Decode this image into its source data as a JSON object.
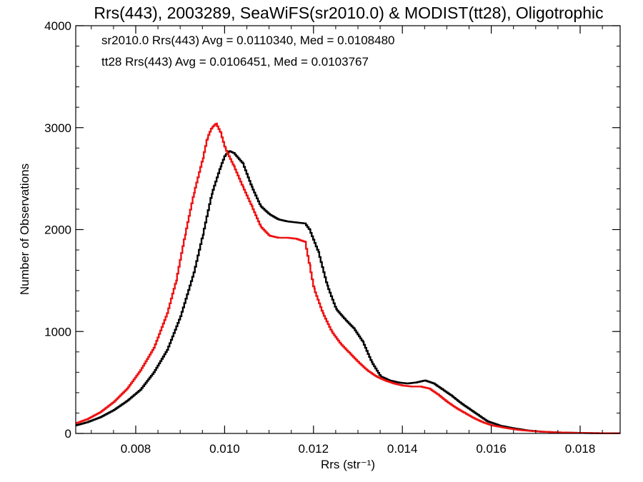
{
  "chart_data": {
    "type": "line",
    "title": "Rrs(443), 2003289, SeaWiFS(sr2010.0) & MODIST(tt28), Oligotrophic",
    "xlabel": "Rrs (str⁻¹)",
    "ylabel": "Number of Observations",
    "xlim": [
      0.00665,
      0.0189
    ],
    "ylim": [
      0,
      4000
    ],
    "x_ticks": [
      0.008,
      0.01,
      0.012,
      0.014,
      0.016,
      0.018
    ],
    "x_tick_labels": [
      "0.008",
      "0.010",
      "0.012",
      "0.014",
      "0.016",
      "0.018"
    ],
    "y_ticks": [
      0,
      1000,
      2000,
      3000,
      4000
    ],
    "y_tick_labels": [
      "0",
      "1000",
      "2000",
      "3000",
      "4000"
    ],
    "grid": false,
    "legend_placement": "top-left",
    "annotations": [
      {
        "text": "sr2010.0 Rrs(443) Avg = 0.0110340, Med = 0.0108480",
        "color": "#000000"
      },
      {
        "text": "tt28 Rrs(443) Avg = 0.0106451, Med = 0.0103767",
        "color": "#ee1111"
      }
    ],
    "series": [
      {
        "color": "#000000",
        "step": true,
        "points": [
          [
            0.00665,
            80
          ],
          [
            0.0069,
            110
          ],
          [
            0.0072,
            160
          ],
          [
            0.0075,
            230
          ],
          [
            0.0078,
            320
          ],
          [
            0.0081,
            430
          ],
          [
            0.0084,
            600
          ],
          [
            0.0087,
            820
          ],
          [
            0.009,
            1150
          ],
          [
            0.0093,
            1580
          ],
          [
            0.0095,
            1950
          ],
          [
            0.0097,
            2350
          ],
          [
            0.0099,
            2620
          ],
          [
            0.01,
            2730
          ],
          [
            0.0101,
            2770
          ],
          [
            0.0102,
            2750
          ],
          [
            0.0104,
            2650
          ],
          [
            0.0106,
            2420
          ],
          [
            0.0108,
            2230
          ],
          [
            0.011,
            2150
          ],
          [
            0.0112,
            2100
          ],
          [
            0.0114,
            2080
          ],
          [
            0.0116,
            2070
          ],
          [
            0.0118,
            2060
          ],
          [
            0.0119,
            2000
          ],
          [
            0.0121,
            1780
          ],
          [
            0.0123,
            1450
          ],
          [
            0.0125,
            1220
          ],
          [
            0.0127,
            1120
          ],
          [
            0.0129,
            1030
          ],
          [
            0.0131,
            900
          ],
          [
            0.0133,
            700
          ],
          [
            0.0135,
            560
          ],
          [
            0.0137,
            520
          ],
          [
            0.0139,
            500
          ],
          [
            0.0141,
            490
          ],
          [
            0.0143,
            500
          ],
          [
            0.0145,
            520
          ],
          [
            0.0147,
            490
          ],
          [
            0.0149,
            430
          ],
          [
            0.0151,
            370
          ],
          [
            0.0153,
            300
          ],
          [
            0.0155,
            240
          ],
          [
            0.0157,
            180
          ],
          [
            0.0159,
            120
          ],
          [
            0.0162,
            75
          ],
          [
            0.0165,
            50
          ],
          [
            0.0168,
            30
          ],
          [
            0.0171,
            18
          ],
          [
            0.0175,
            10
          ],
          [
            0.018,
            5
          ],
          [
            0.0185,
            2
          ],
          [
            0.0189,
            1
          ]
        ]
      },
      {
        "color": "#ee1111",
        "step": true,
        "points": [
          [
            0.00665,
            100
          ],
          [
            0.0069,
            140
          ],
          [
            0.0072,
            210
          ],
          [
            0.0075,
            310
          ],
          [
            0.0078,
            440
          ],
          [
            0.0081,
            620
          ],
          [
            0.0084,
            840
          ],
          [
            0.0087,
            1180
          ],
          [
            0.0089,
            1500
          ],
          [
            0.0091,
            1950
          ],
          [
            0.0093,
            2360
          ],
          [
            0.0095,
            2700
          ],
          [
            0.0096,
            2900
          ],
          [
            0.0097,
            3000
          ],
          [
            0.0098,
            3040
          ],
          [
            0.0099,
            2950
          ],
          [
            0.01,
            2800
          ],
          [
            0.0102,
            2620
          ],
          [
            0.0104,
            2420
          ],
          [
            0.0106,
            2230
          ],
          [
            0.0108,
            2030
          ],
          [
            0.011,
            1940
          ],
          [
            0.0112,
            1920
          ],
          [
            0.0114,
            1920
          ],
          [
            0.0116,
            1910
          ],
          [
            0.0118,
            1880
          ],
          [
            0.0119,
            1650
          ],
          [
            0.012,
            1420
          ],
          [
            0.0122,
            1180
          ],
          [
            0.0124,
            1000
          ],
          [
            0.0126,
            880
          ],
          [
            0.0128,
            790
          ],
          [
            0.013,
            700
          ],
          [
            0.0132,
            620
          ],
          [
            0.0134,
            560
          ],
          [
            0.0136,
            520
          ],
          [
            0.0138,
            490
          ],
          [
            0.014,
            470
          ],
          [
            0.0142,
            460
          ],
          [
            0.0144,
            460
          ],
          [
            0.0146,
            440
          ],
          [
            0.0148,
            380
          ],
          [
            0.015,
            310
          ],
          [
            0.0152,
            250
          ],
          [
            0.0154,
            200
          ],
          [
            0.0156,
            150
          ],
          [
            0.0158,
            110
          ],
          [
            0.016,
            80
          ],
          [
            0.0163,
            55
          ],
          [
            0.0166,
            35
          ],
          [
            0.017,
            20
          ],
          [
            0.0175,
            10
          ],
          [
            0.018,
            5
          ],
          [
            0.0185,
            2
          ],
          [
            0.0189,
            1
          ]
        ]
      }
    ]
  }
}
